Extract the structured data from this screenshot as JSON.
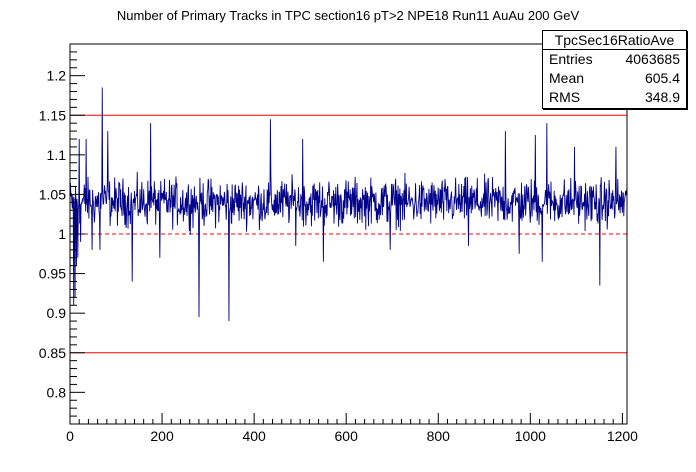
{
  "colors": {
    "data": "#00008b",
    "ref_lines": "#ff0000",
    "axes": "#000000",
    "background": "#ffffff"
  },
  "stats": {
    "name": "TpcSec16RatioAve",
    "entries_label": "Entries",
    "entries_value": "4063685",
    "mean_label": "Mean",
    "mean_value": "605.4",
    "rms_label": "RMS",
    "rms_value": "348.9"
  },
  "chart_data": {
    "type": "line",
    "title": "Number of Primary Tracks in TPC section16 pT>2 NPE18 Run11 AuAu 200 GeV",
    "xlabel": "",
    "ylabel": "",
    "xlim": [
      0,
      1210
    ],
    "ylim": [
      0.76,
      1.24
    ],
    "x_ticks": [
      0,
      200,
      400,
      600,
      800,
      1000,
      1200
    ],
    "x_tick_labels": [
      "0",
      "200",
      "400",
      "600",
      "800",
      "1000",
      "1200"
    ],
    "y_ticks": [
      0.8,
      0.85,
      0.9,
      0.95,
      1.0,
      1.05,
      1.1,
      1.15,
      1.2
    ],
    "y_tick_labels": [
      "0.8",
      "0.85",
      "0.9",
      "0.95",
      "1",
      "1.05",
      "1.1",
      "1.15",
      "1.2"
    ],
    "grid": false,
    "legend": "top-right",
    "ref_lines": [
      {
        "y": 1.15,
        "style": "solid"
      },
      {
        "y": 1.0,
        "style": "dashed"
      },
      {
        "y": 0.85,
        "style": "solid"
      }
    ],
    "series": [
      {
        "x_range": [
          0,
          1210
        ],
        "n_points": 1210,
        "baseline": 1.04,
        "noise_amplitude": 0.018,
        "spikes": [
          {
            "x": 8,
            "y": 0.91
          },
          {
            "x": 11,
            "y": 0.92
          },
          {
            "x": 14,
            "y": 0.96
          },
          {
            "x": 17,
            "y": 0.97
          },
          {
            "x": 20,
            "y": 1.12
          },
          {
            "x": 23,
            "y": 0.99
          },
          {
            "x": 35,
            "y": 1.12
          },
          {
            "x": 48,
            "y": 0.98
          },
          {
            "x": 65,
            "y": 0.98
          },
          {
            "x": 70,
            "y": 1.185
          },
          {
            "x": 82,
            "y": 1.13
          },
          {
            "x": 135,
            "y": 0.94
          },
          {
            "x": 175,
            "y": 1.14
          },
          {
            "x": 195,
            "y": 0.97
          },
          {
            "x": 280,
            "y": 0.895
          },
          {
            "x": 345,
            "y": 0.89
          },
          {
            "x": 435,
            "y": 1.145
          },
          {
            "x": 490,
            "y": 0.985
          },
          {
            "x": 505,
            "y": 1.12
          },
          {
            "x": 550,
            "y": 0.965
          },
          {
            "x": 695,
            "y": 0.98
          },
          {
            "x": 865,
            "y": 0.985
          },
          {
            "x": 945,
            "y": 1.13
          },
          {
            "x": 975,
            "y": 0.975
          },
          {
            "x": 1010,
            "y": 1.125
          },
          {
            "x": 1025,
            "y": 0.965
          },
          {
            "x": 1035,
            "y": 1.14
          },
          {
            "x": 1095,
            "y": 1.11
          },
          {
            "x": 1150,
            "y": 0.935
          },
          {
            "x": 1185,
            "y": 1.11
          }
        ]
      }
    ]
  }
}
